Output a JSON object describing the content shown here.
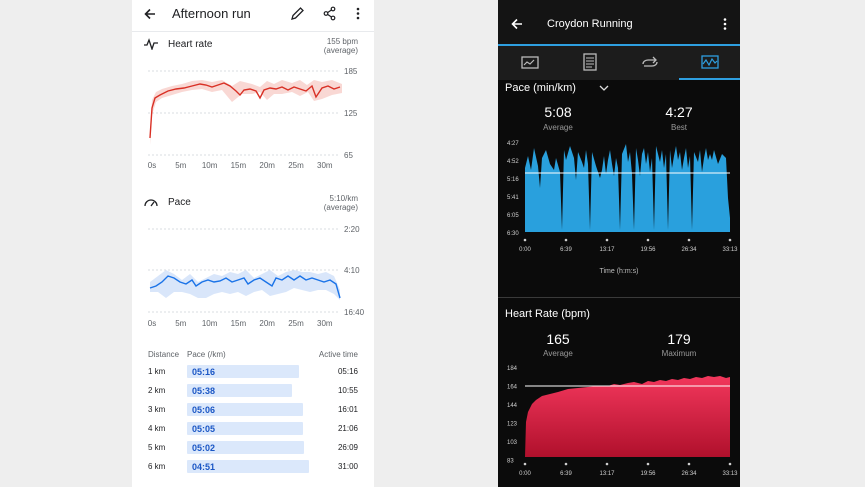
{
  "left": {
    "title": "Afternoon run",
    "heart_rate": {
      "label": "Heart rate",
      "value": "155 bpm",
      "value_sub": "(average)",
      "y_ticks": [
        "185",
        "125",
        "65"
      ],
      "x_ticks": [
        "0s",
        "5m",
        "10m",
        "15m",
        "20m",
        "25m",
        "30m"
      ],
      "color": "#d93025"
    },
    "pace": {
      "label": "Pace",
      "value": "5:10/km",
      "value_sub": "(average)",
      "y_ticks": [
        "2:20",
        "4:10",
        "16:40"
      ],
      "x_ticks": [
        "0s",
        "5m",
        "10m",
        "15m",
        "20m",
        "25m",
        "30m"
      ],
      "color": "#1a73e8"
    },
    "splits": {
      "headers": [
        "Distance",
        "Pace (/km)",
        "Active time"
      ],
      "rows": [
        {
          "distance": "1 km",
          "pace": "05:16",
          "time": "05:16"
        },
        {
          "distance": "2 km",
          "pace": "05:38",
          "time": "10:55"
        },
        {
          "distance": "3 km",
          "pace": "05:06",
          "time": "16:01"
        },
        {
          "distance": "4 km",
          "pace": "05:05",
          "time": "21:06"
        },
        {
          "distance": "5 km",
          "pace": "05:02",
          "time": "26:09"
        },
        {
          "distance": "6 km",
          "pace": "04:51",
          "time": "31:00"
        }
      ]
    }
  },
  "right": {
    "title": "Croydon Running",
    "tabs": [
      "summary-tab",
      "details-tab",
      "laps-tab",
      "charts-tab"
    ],
    "pace": {
      "label": "Pace (min/km)",
      "avg_value": "5:08",
      "avg_label": "Average",
      "best_value": "4:27",
      "best_label": "Best",
      "y_ticks": [
        "4:27",
        "4:52",
        "5:16",
        "5:41",
        "6:05",
        "6:30"
      ],
      "x_ticks": [
        "0:00",
        "6:39",
        "13:17",
        "19:56",
        "26:34",
        "33:13"
      ],
      "x_axis_label": "Time (h:m:s)",
      "color": "#29a0dd"
    },
    "hr": {
      "label": "Heart Rate (bpm)",
      "avg_value": "165",
      "avg_label": "Average",
      "max_value": "179",
      "max_label": "Maximum",
      "y_ticks": [
        "184",
        "164",
        "144",
        "123",
        "103",
        "83"
      ],
      "x_ticks": [
        "0:00",
        "6:39",
        "13:17",
        "19:56",
        "26:34",
        "33:13"
      ],
      "color": "#e31c44"
    },
    "accent": "#2e9fe0"
  }
}
